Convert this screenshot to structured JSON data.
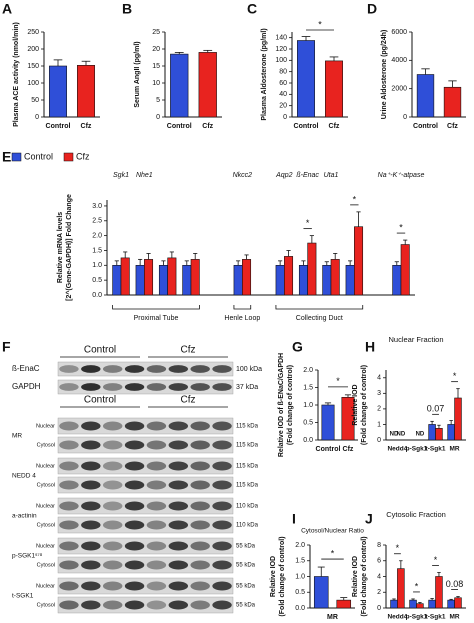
{
  "chart_data": [
    {
      "type": "bar",
      "panel": "A",
      "ylabel": "Plasma ACE activity (nmol/min)",
      "categories": [
        "Control",
        "Cfz"
      ],
      "values": [
        150,
        152
      ],
      "errors": [
        18,
        12
      ],
      "colors": [
        "#2f4fd8",
        "#e8231f"
      ],
      "ylim": [
        0,
        250
      ],
      "yticks": [
        0,
        50,
        100,
        150,
        200,
        250
      ]
    },
    {
      "type": "bar",
      "panel": "B",
      "ylabel": "Serum AngII (pg/ml)",
      "categories": [
        "Control",
        "Cfz"
      ],
      "values": [
        18.5,
        19
      ],
      "errors": [
        0.5,
        0.6
      ],
      "colors": [
        "#2f4fd8",
        "#e8231f"
      ],
      "ylim": [
        0,
        25
      ],
      "yticks": [
        0,
        5,
        10,
        15,
        20,
        25
      ]
    },
    {
      "type": "bar",
      "panel": "C",
      "ylabel": "Plasma Aldosterone (pg/ml)",
      "categories": [
        "Control",
        "Cfz"
      ],
      "values": [
        135,
        99
      ],
      "errors": [
        7,
        7
      ],
      "colors": [
        "#2f4fd8",
        "#e8231f"
      ],
      "ylim": [
        0,
        150
      ],
      "yticks": [
        0,
        20,
        40,
        60,
        80,
        100,
        120,
        140
      ],
      "annotations": [
        "*"
      ]
    },
    {
      "type": "bar",
      "panel": "D",
      "ylabel": "Urine Aldosterone (pg/24h)",
      "categories": [
        "Control",
        "Cfz"
      ],
      "values": [
        3000,
        2100
      ],
      "errors": [
        400,
        450
      ],
      "colors": [
        "#2f4fd8",
        "#e8231f"
      ],
      "ylim": [
        0,
        6000
      ],
      "yticks": [
        0,
        2000,
        4000,
        6000
      ]
    },
    {
      "type": "grouped-bar",
      "panel": "E",
      "ylabel": [
        "Relative mRNA levels",
        "[2^(Gene-GAPDH)] Fold Change"
      ],
      "categories": [
        "Sgk1",
        "Nhe1",
        null,
        null,
        "Nkcc2",
        "Aqp2",
        "ß-Enac",
        "Uta1",
        null,
        "Na⁺-K⁺-atpase"
      ],
      "series": [
        {
          "name": "Control",
          "color": "#2f4fd8",
          "values": [
            1.0,
            1.0,
            1.0,
            1.0,
            1.0,
            1.0,
            1.0,
            1.0,
            1.0,
            1.0
          ],
          "errors": [
            0.15,
            0.2,
            0.15,
            0.15,
            0.15,
            0.15,
            0.15,
            0.12,
            0.15,
            0.12
          ]
        },
        {
          "name": "Cfz",
          "color": "#e8231f",
          "values": [
            1.25,
            1.2,
            1.25,
            1.2,
            1.2,
            1.3,
            1.75,
            1.2,
            2.3,
            1.7
          ],
          "errors": [
            0.2,
            0.2,
            0.2,
            0.2,
            0.15,
            0.2,
            0.25,
            0.2,
            0.5,
            0.15
          ]
        }
      ],
      "regions": [
        "Proximal Tube",
        "Henle Loop",
        "Collecting Duct"
      ],
      "annotations": [
        null,
        null,
        null,
        null,
        null,
        null,
        "*",
        null,
        "*",
        "*"
      ],
      "ylim": [
        0,
        3.2
      ],
      "yticks": [
        {
          "value": 0,
          "label": "0.0"
        },
        0.5,
        {
          "value": 1,
          "label": "1.0"
        },
        1.5,
        {
          "value": 2,
          "label": "2.0"
        },
        2.5,
        {
          "value": 3,
          "label": "3.0"
        }
      ]
    },
    {
      "type": "bar",
      "panel": "G",
      "ylabel": [
        "Relative IOD of ß-ENaC/GAPDH",
        "(Fold change of control)"
      ],
      "categories": [
        "Control",
        "Cfz"
      ],
      "values": [
        1.0,
        1.22
      ],
      "errors": [
        0.06,
        0.07
      ],
      "colors": [
        "#2f4fd8",
        "#e8231f"
      ],
      "ylim": [
        0,
        2
      ],
      "yticks": [
        {
          "value": 0,
          "label": "0.0"
        },
        0.5,
        {
          "value": 1,
          "label": "1.0"
        },
        1.5,
        {
          "value": 2,
          "label": "2.0"
        }
      ],
      "annotations": [
        "*"
      ]
    },
    {
      "type": "grouped-bar",
      "panel": "H",
      "title": "Nuclear Fraction",
      "ylabel": [
        "Relative IOD",
        "(Fold change of control)"
      ],
      "categories": [
        "Nedd4",
        "p-Sgk1",
        "t-Sgk1",
        "MR"
      ],
      "series": [
        {
          "color": "#2f4fd8",
          "values": [
            null,
            null,
            1.0,
            1.0
          ],
          "value_labels": [
            "ND",
            null,
            null,
            null
          ],
          "errors": [
            null,
            null,
            0.2,
            0.25
          ]
        },
        {
          "color": "#e8231f",
          "values": [
            null,
            null,
            0.75,
            2.7
          ],
          "value_labels": [
            "ND",
            "ND",
            null,
            null
          ],
          "errors": [
            null,
            null,
            0.2,
            0.6
          ]
        }
      ],
      "annotations": [
        null,
        null,
        "0.07",
        "*"
      ],
      "ylim": [
        0,
        4.5
      ],
      "yticks": [
        0,
        1,
        2,
        3,
        4
      ]
    },
    {
      "type": "bar",
      "panel": "I",
      "title": "Cytosol/Nuclear Ratio",
      "ylabel": [
        "Relative IOD",
        "(Fold change of control)"
      ],
      "xlabel": "MR",
      "values": [
        1.0,
        0.25
      ],
      "errors": [
        0.3,
        0.08
      ],
      "colors": [
        "#2f4fd8",
        "#e8231f"
      ],
      "ylim": [
        0,
        2
      ],
      "yticks": [
        {
          "value": 0,
          "label": "0.0"
        },
        0.5,
        {
          "value": 1,
          "label": "1.0"
        },
        1.5,
        {
          "value": 2,
          "label": "2.0"
        }
      ],
      "annotations": [
        "*"
      ]
    },
    {
      "type": "grouped-bar",
      "panel": "J",
      "title": "Cytosolic Fraction",
      "ylabel": [
        "Relative IOD",
        "(Fold change of control)"
      ],
      "categories": [
        "Nedd4",
        "p-Sgk1",
        "t-Sgk1",
        "MR"
      ],
      "series": [
        {
          "color": "#2f4fd8",
          "values": [
            1.0,
            1.0,
            1.0,
            1.0
          ],
          "errors": [
            0.15,
            0.15,
            0.2,
            0.1
          ]
        },
        {
          "color": "#e8231f",
          "values": [
            5.0,
            0.55,
            4.0,
            1.3
          ],
          "errors": [
            1.0,
            0.15,
            0.5,
            0.15
          ]
        }
      ],
      "annotations": [
        "*",
        "*",
        "*",
        "0.08"
      ],
      "ylim": [
        0,
        8
      ],
      "yticks": [
        0,
        2,
        4,
        6,
        8
      ]
    }
  ],
  "blot": {
    "panel": "F",
    "header1": [
      "Control",
      "Cfz"
    ],
    "rows": [
      {
        "label": "ß-EnaC",
        "kda": "100 kDa"
      },
      {
        "label": "GAPDH",
        "kda": "37 kDa"
      }
    ],
    "header2": [
      "Control",
      "Cfz"
    ],
    "proteins": [
      {
        "name": "MR",
        "fractions": [
          "Nuclear",
          "Cytosol"
        ],
        "kda": [
          "115 kDa",
          "115 kDa"
        ]
      },
      {
        "name": "NEDD 4",
        "fractions": [
          "Nuclear",
          "Cytosol"
        ],
        "kda": [
          "115 kDa",
          "115 kDa"
        ]
      },
      {
        "name": "a-actinin",
        "fractions": [
          "Nuclear",
          "Cytosol"
        ],
        "kda": [
          "110 kDa",
          "110 kDa"
        ]
      },
      {
        "name": "p-SGK1ˢ⁷⁸",
        "fractions": [
          "Nuclear",
          "Cytosol"
        ],
        "kda": [
          "55 kDa",
          "55 kDa"
        ]
      },
      {
        "name": "t-SGK1",
        "fractions": [
          "Nuclear",
          "Cytosol"
        ],
        "kda": [
          "55 kDa",
          "55 kDa"
        ]
      }
    ]
  }
}
